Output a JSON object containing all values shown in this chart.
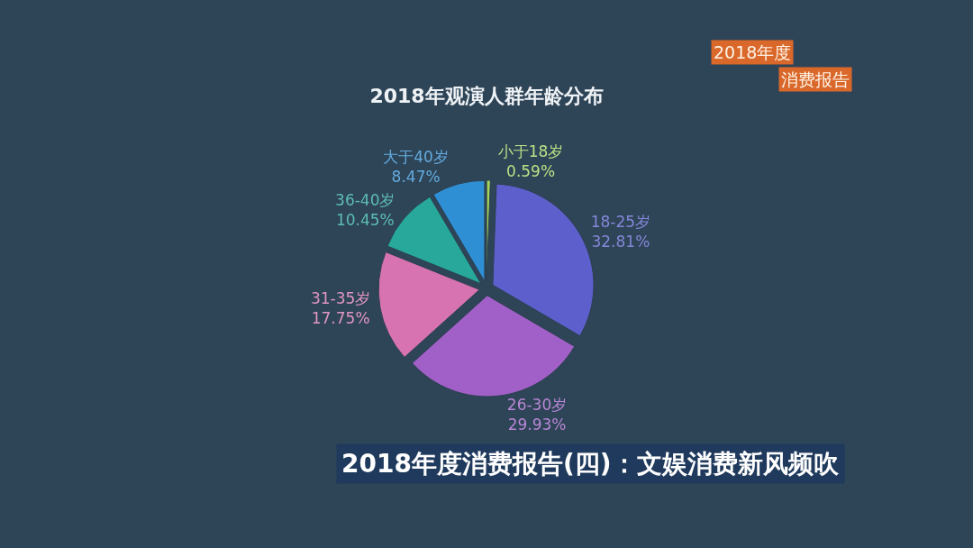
{
  "chart_data": {
    "type": "pie",
    "title": "2018年观演人群年龄分布",
    "categories": [
      "小于18岁",
      "18-25岁",
      "26-30岁",
      "31-35岁",
      "36-40岁",
      "大于40岁"
    ],
    "values": [
      0.59,
      32.81,
      29.93,
      17.75,
      10.45,
      8.47
    ],
    "value_labels": [
      "0.59%",
      "32.81%",
      "29.93%",
      "17.75%",
      "10.45%",
      "8.47%"
    ],
    "colors": [
      "#a4d65e",
      "#5c5fcc",
      "#a160c8",
      "#d673b0",
      "#27a89a",
      "#2f8fd4"
    ],
    "annotations": [
      "2018年度",
      "消费报告",
      "2018年度消费报告(四)：文娱消费新风频吹"
    ],
    "legend": false
  }
}
